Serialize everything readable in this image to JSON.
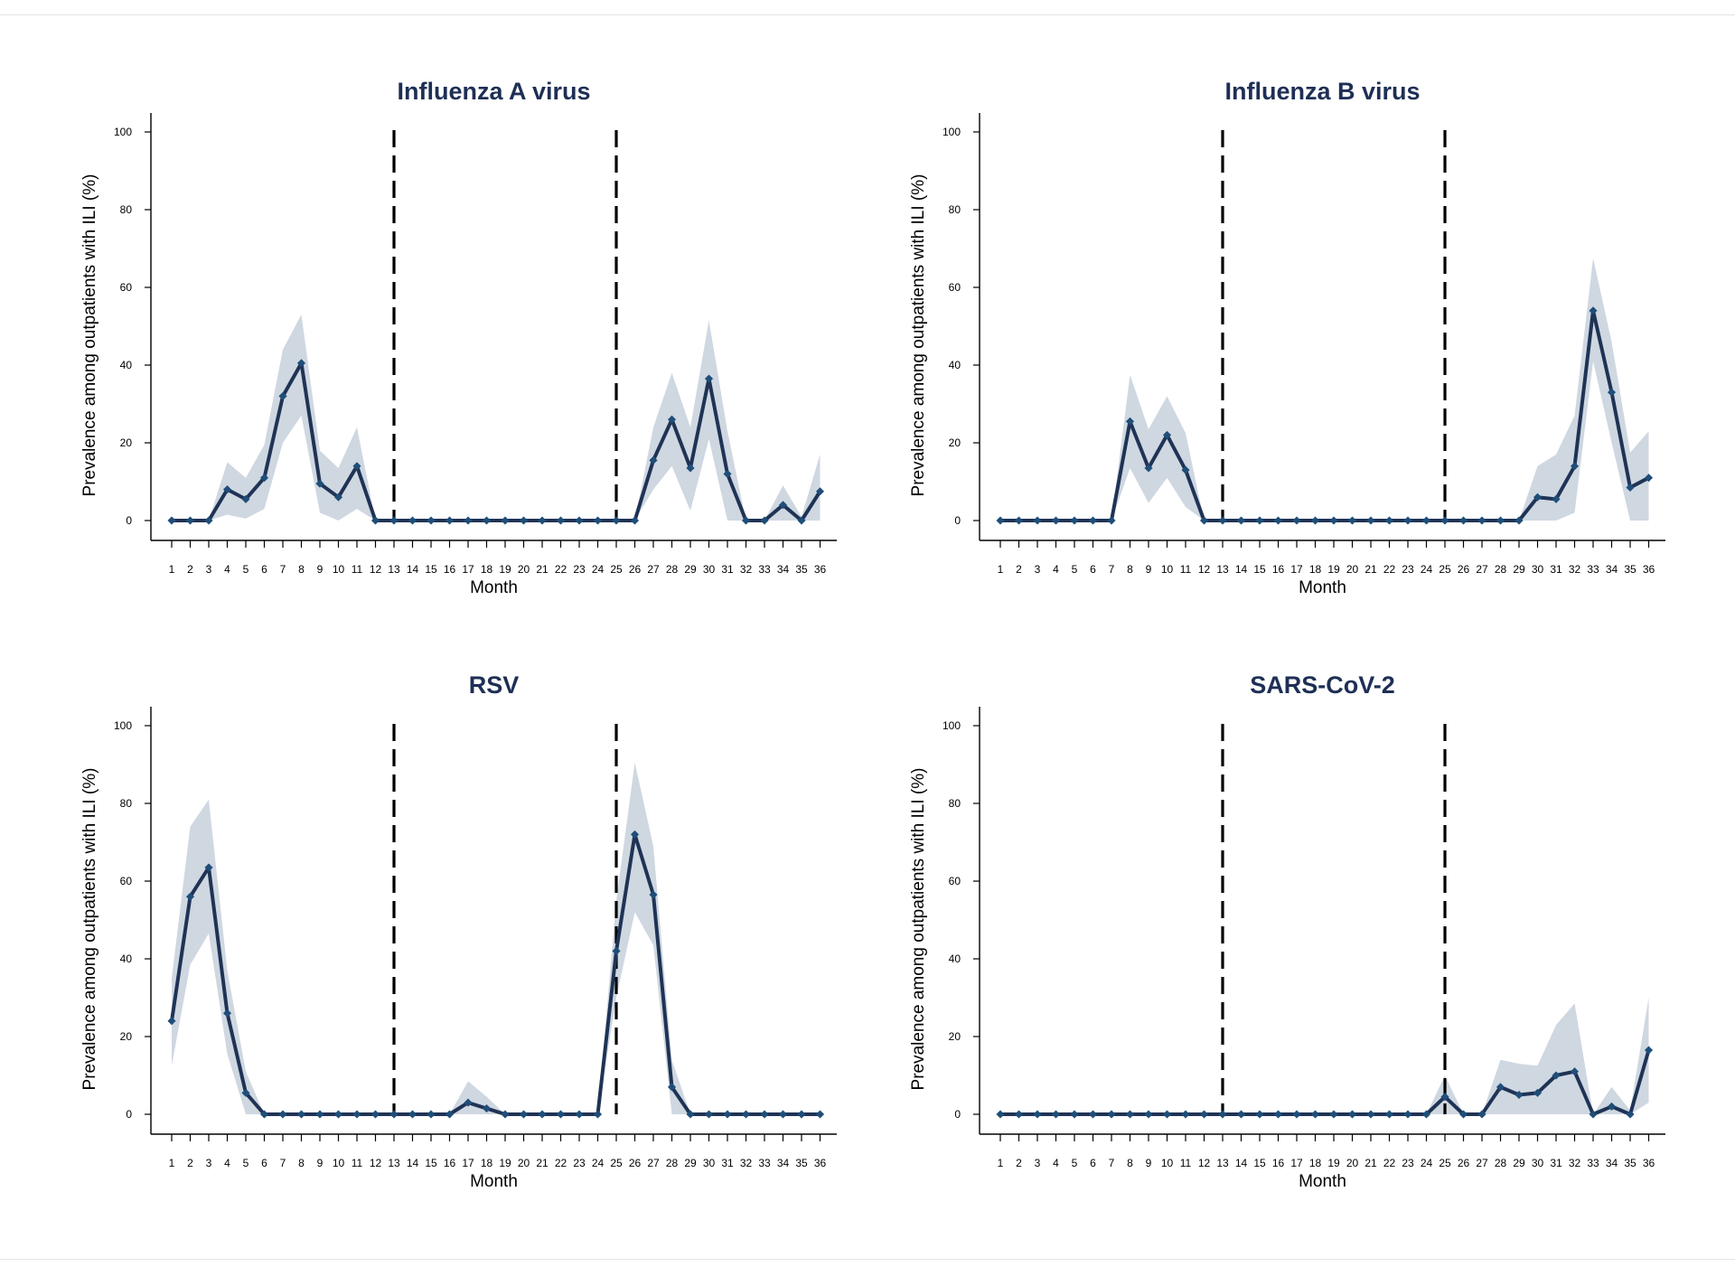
{
  "colors": {
    "line": "#1f3355",
    "marker": "#1f4e79",
    "band": "#c7d0dc",
    "title": "#1e2f55",
    "divider": "#000000"
  },
  "chart_data": [
    {
      "type": "line",
      "title": "Influenza A virus",
      "xlabel": "Month",
      "ylabel": "Prevalence among outpatients with ILI (%)",
      "x": [
        1,
        2,
        3,
        4,
        5,
        6,
        7,
        8,
        9,
        10,
        11,
        12,
        13,
        14,
        15,
        16,
        17,
        18,
        19,
        20,
        21,
        22,
        23,
        24,
        25,
        26,
        27,
        28,
        29,
        30,
        31,
        32,
        33,
        34,
        35,
        36
      ],
      "ylim": [
        0,
        100
      ],
      "yticks": [
        0,
        20,
        40,
        60,
        80,
        100
      ],
      "vlines": [
        13,
        25
      ],
      "values": [
        0,
        0,
        0,
        8,
        5.5,
        11,
        32,
        40.5,
        9.5,
        6,
        14,
        0,
        0,
        0,
        0,
        0,
        0,
        0,
        0,
        0,
        0,
        0,
        0,
        0,
        0,
        0,
        15.5,
        26,
        13.5,
        36.5,
        12,
        0,
        0,
        4,
        0,
        7.5
      ],
      "lower": [
        0,
        0,
        0,
        1.5,
        0.5,
        3,
        20,
        27,
        2,
        0,
        3,
        0,
        0,
        0,
        0,
        0,
        0,
        0,
        0,
        0,
        0,
        0,
        0,
        0,
        0,
        0,
        8,
        14,
        2.5,
        21,
        0,
        0,
        0,
        0,
        0,
        0
      ],
      "upper": [
        0,
        0,
        0,
        15,
        11,
        19.5,
        44,
        53,
        18,
        13.5,
        24,
        0,
        0,
        0,
        0,
        0,
        0,
        0,
        0,
        0,
        0,
        0,
        0,
        0,
        0,
        0,
        24,
        38,
        24,
        51.5,
        23,
        0,
        0,
        9,
        1,
        17
      ]
    },
    {
      "type": "line",
      "title": "Influenza B virus",
      "xlabel": "Month",
      "ylabel": "Prevalence among outpatients with ILI (%)",
      "x": [
        1,
        2,
        3,
        4,
        5,
        6,
        7,
        8,
        9,
        10,
        11,
        12,
        13,
        14,
        15,
        16,
        17,
        18,
        19,
        20,
        21,
        22,
        23,
        24,
        25,
        26,
        27,
        28,
        29,
        30,
        31,
        32,
        33,
        34,
        35,
        36
      ],
      "ylim": [
        0,
        100
      ],
      "yticks": [
        0,
        20,
        40,
        60,
        80,
        100
      ],
      "vlines": [
        13,
        25
      ],
      "values": [
        0,
        0,
        0,
        0,
        0,
        0,
        0,
        25.5,
        13.5,
        22,
        13,
        0,
        0,
        0,
        0,
        0,
        0,
        0,
        0,
        0,
        0,
        0,
        0,
        0,
        0,
        0,
        0,
        0,
        0,
        6,
        5.5,
        14,
        54,
        33,
        8.5,
        11
      ],
      "lower": [
        0,
        0,
        0,
        0,
        0,
        0,
        0,
        13.5,
        4.5,
        11,
        3.5,
        0,
        0,
        0,
        0,
        0,
        0,
        0,
        0,
        0,
        0,
        0,
        0,
        0,
        0,
        0,
        0,
        0,
        0,
        0,
        0,
        2,
        41,
        20,
        0,
        0
      ],
      "upper": [
        0,
        0,
        0,
        0,
        0,
        0,
        0,
        37.5,
        23.5,
        32,
        22.5,
        0,
        0,
        0,
        0,
        0,
        0,
        0,
        0,
        0,
        0,
        0,
        0,
        0,
        0,
        0,
        0,
        0,
        0,
        14,
        17,
        27,
        67.5,
        46,
        17.5,
        23
      ]
    },
    {
      "type": "line",
      "title": "RSV",
      "xlabel": "Month",
      "ylabel": "Prevalence among outpatients with ILI (%)",
      "x": [
        1,
        2,
        3,
        4,
        5,
        6,
        7,
        8,
        9,
        10,
        11,
        12,
        13,
        14,
        15,
        16,
        17,
        18,
        19,
        20,
        21,
        22,
        23,
        24,
        25,
        26,
        27,
        28,
        29,
        30,
        31,
        32,
        33,
        34,
        35,
        36
      ],
      "ylim": [
        0,
        100
      ],
      "yticks": [
        0,
        20,
        40,
        60,
        80,
        100
      ],
      "vlines": [
        13,
        25
      ],
      "values": [
        24,
        56,
        63.5,
        26,
        5.5,
        0,
        0,
        0,
        0,
        0,
        0,
        0,
        0,
        0,
        0,
        0,
        3,
        1.5,
        0,
        0,
        0,
        0,
        0,
        0,
        42,
        72,
        56.5,
        7,
        0,
        0,
        0,
        0,
        0,
        0,
        0,
        0
      ],
      "lower": [
        12.5,
        38.5,
        46.5,
        15.5,
        0,
        0,
        0,
        0,
        0,
        0,
        0,
        0,
        0,
        0,
        0,
        0,
        0,
        0,
        0,
        0,
        0,
        0,
        0,
        0,
        30,
        52,
        43.5,
        0,
        0,
        0,
        0,
        0,
        0,
        0,
        0,
        0
      ],
      "upper": [
        35,
        74,
        81,
        37,
        11,
        0,
        0,
        0,
        0,
        0,
        0,
        0,
        0,
        0,
        0,
        0,
        8.5,
        4.5,
        0,
        0,
        0,
        0,
        0,
        0,
        55,
        90.5,
        69,
        14,
        0,
        0,
        0,
        0,
        0,
        0,
        0,
        0
      ]
    },
    {
      "type": "line",
      "title": "SARS-CoV-2",
      "xlabel": "Month",
      "ylabel": "Prevalence among outpatients with ILI (%)",
      "x": [
        1,
        2,
        3,
        4,
        5,
        6,
        7,
        8,
        9,
        10,
        11,
        12,
        13,
        14,
        15,
        16,
        17,
        18,
        19,
        20,
        21,
        22,
        23,
        24,
        25,
        26,
        27,
        28,
        29,
        30,
        31,
        32,
        33,
        34,
        35,
        36
      ],
      "ylim": [
        0,
        100
      ],
      "yticks": [
        0,
        20,
        40,
        60,
        80,
        100
      ],
      "vlines": [
        13,
        25
      ],
      "values": [
        0,
        0,
        0,
        0,
        0,
        0,
        0,
        0,
        0,
        0,
        0,
        0,
        0,
        0,
        0,
        0,
        0,
        0,
        0,
        0,
        0,
        0,
        0,
        0,
        4.5,
        0,
        0,
        7,
        5,
        5.5,
        10,
        11,
        0,
        2,
        0,
        16.5
      ],
      "lower": [
        0,
        0,
        0,
        0,
        0,
        0,
        0,
        0,
        0,
        0,
        0,
        0,
        0,
        0,
        0,
        0,
        0,
        0,
        0,
        0,
        0,
        0,
        0,
        0,
        0,
        0,
        0,
        0,
        0,
        0,
        0,
        0,
        0,
        0,
        0,
        3
      ],
      "upper": [
        0,
        0,
        0,
        0,
        0,
        0,
        0,
        0,
        0,
        0,
        0,
        0,
        0,
        0,
        0,
        0,
        0,
        0,
        0,
        0,
        0,
        0,
        0,
        0,
        10,
        0,
        0,
        14,
        13,
        12.5,
        23,
        28.5,
        0,
        7,
        1,
        30
      ]
    }
  ]
}
